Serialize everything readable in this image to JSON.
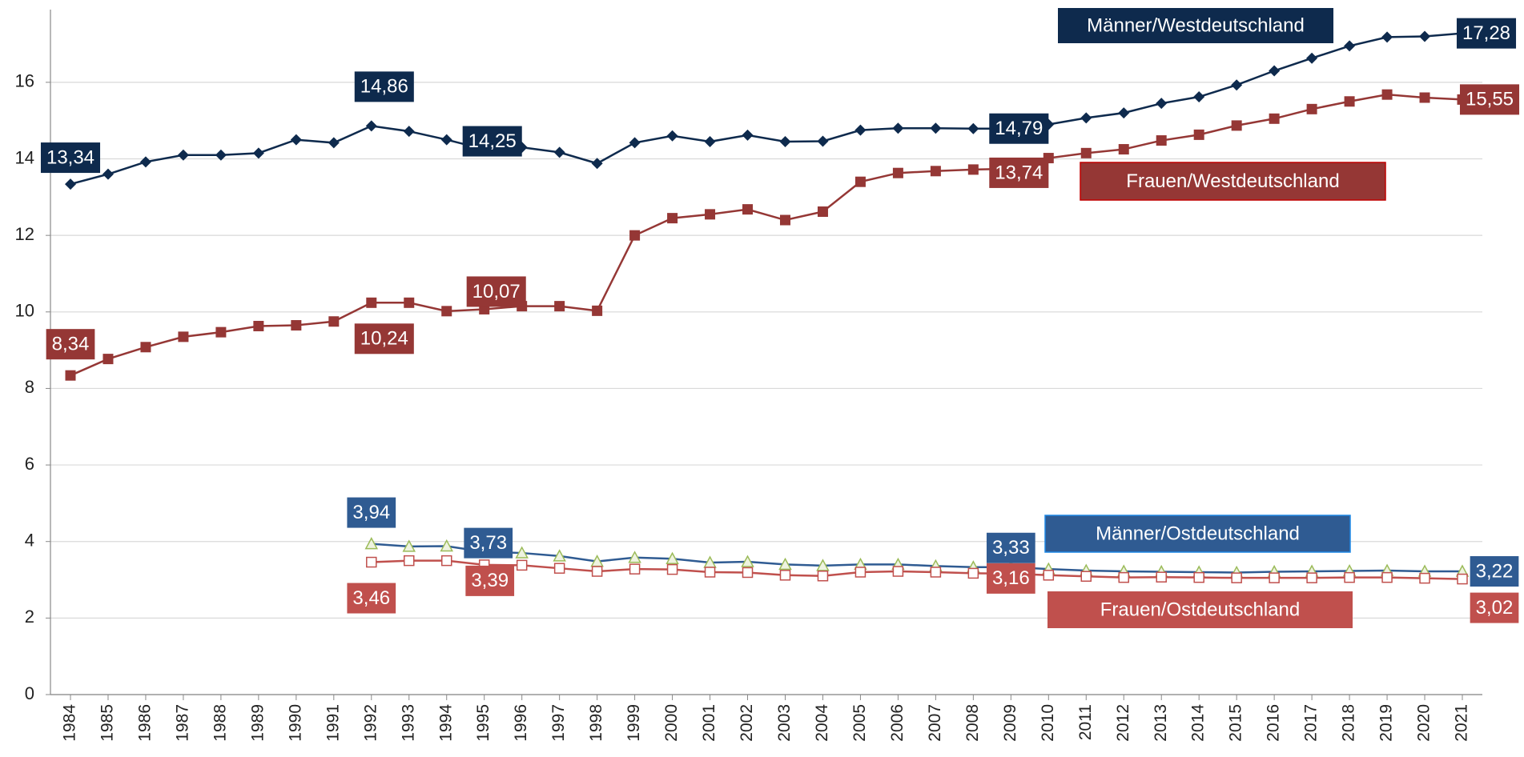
{
  "chart_data": {
    "type": "line",
    "categories": [
      "1984",
      "1985",
      "1986",
      "1987",
      "1988",
      "1989",
      "1990",
      "1991",
      "1992",
      "1993",
      "1994",
      "1995",
      "1996",
      "1997",
      "1998",
      "1999",
      "2000",
      "2001",
      "2002",
      "2003",
      "2004",
      "2005",
      "2006",
      "2007",
      "2008",
      "2009",
      "2010",
      "2011",
      "2012",
      "2013",
      "2014",
      "2015",
      "2016",
      "2017",
      "2018",
      "2019",
      "2020",
      "2021"
    ],
    "ylim": [
      0,
      17.9
    ],
    "yticks": [
      0,
      2,
      4,
      6,
      8,
      10,
      12,
      14,
      16
    ],
    "grid": true,
    "series": [
      {
        "name": "Männer/Westdeutschland",
        "color": "#0e2a4d",
        "marker": "diamond",
        "marker_color": "#0e2a4d",
        "values": [
          13.34,
          13.6,
          13.92,
          14.1,
          14.1,
          14.15,
          14.5,
          14.42,
          14.86,
          14.72,
          14.5,
          14.25,
          14.3,
          14.17,
          13.88,
          14.42,
          14.6,
          14.45,
          14.62,
          14.45,
          14.46,
          14.75,
          14.8,
          14.8,
          14.79,
          14.79,
          14.9,
          15.07,
          15.2,
          15.45,
          15.62,
          15.93,
          16.3,
          16.63,
          16.95,
          17.18,
          17.2,
          17.28
        ],
        "value_labels": [
          "13,34",
          null,
          null,
          null,
          null,
          null,
          null,
          null,
          "14,86",
          null,
          null,
          "14,25",
          null,
          null,
          null,
          null,
          null,
          null,
          null,
          null,
          null,
          null,
          null,
          null,
          null,
          "14,79",
          null,
          null,
          null,
          null,
          null,
          null,
          null,
          null,
          null,
          null,
          null,
          "17,28"
        ]
      },
      {
        "name": "Frauen/Westdeutschland",
        "color": "#953735",
        "marker": "square",
        "marker_color": "#953735",
        "values": [
          8.34,
          8.77,
          9.08,
          9.35,
          9.47,
          9.63,
          9.65,
          9.75,
          10.24,
          10.24,
          10.02,
          10.07,
          10.15,
          10.15,
          10.03,
          12.0,
          12.45,
          12.55,
          12.68,
          12.4,
          12.62,
          13.4,
          13.63,
          13.68,
          13.72,
          13.74,
          14.02,
          14.15,
          14.25,
          14.48,
          14.63,
          14.87,
          15.05,
          15.3,
          15.5,
          15.68,
          15.6,
          15.55
        ],
        "value_labels": [
          "8,34",
          null,
          null,
          null,
          null,
          null,
          null,
          null,
          "10,24",
          null,
          null,
          "10,07",
          null,
          null,
          null,
          null,
          null,
          null,
          null,
          null,
          null,
          null,
          null,
          null,
          null,
          "13,74",
          null,
          null,
          null,
          null,
          null,
          null,
          null,
          null,
          null,
          null,
          null,
          "15,55"
        ]
      },
      {
        "name": "Männer/Ostdeutschland",
        "color": "#2f5b92",
        "marker": "triangle",
        "marker_color": "#9bbb59",
        "values": [
          null,
          null,
          null,
          null,
          null,
          null,
          null,
          null,
          3.94,
          3.87,
          3.88,
          3.73,
          3.7,
          3.62,
          3.48,
          3.58,
          3.55,
          3.45,
          3.47,
          3.4,
          3.37,
          3.4,
          3.4,
          3.36,
          3.33,
          3.33,
          3.28,
          3.24,
          3.22,
          3.21,
          3.2,
          3.19,
          3.21,
          3.22,
          3.23,
          3.24,
          3.22,
          3.22
        ],
        "value_labels": [
          null,
          null,
          null,
          null,
          null,
          null,
          null,
          null,
          "3,94",
          null,
          null,
          "3,73",
          null,
          null,
          null,
          null,
          null,
          null,
          null,
          null,
          null,
          null,
          null,
          null,
          null,
          "3,33",
          null,
          null,
          null,
          null,
          null,
          null,
          null,
          null,
          null,
          null,
          null,
          "3,22"
        ]
      },
      {
        "name": "Frauen/Ostdeutschland",
        "color": "#c0504d",
        "marker": "open-square",
        "marker_color": "#c0504d",
        "values": [
          null,
          null,
          null,
          null,
          null,
          null,
          null,
          null,
          3.46,
          3.5,
          3.5,
          3.39,
          3.38,
          3.3,
          3.22,
          3.28,
          3.27,
          3.2,
          3.19,
          3.12,
          3.1,
          3.2,
          3.22,
          3.2,
          3.17,
          3.16,
          3.12,
          3.09,
          3.06,
          3.07,
          3.06,
          3.05,
          3.05,
          3.05,
          3.06,
          3.06,
          3.04,
          3.02
        ],
        "value_labels": [
          null,
          null,
          null,
          null,
          null,
          null,
          null,
          null,
          "3,46",
          null,
          null,
          "3,39",
          null,
          null,
          null,
          null,
          null,
          null,
          null,
          null,
          null,
          null,
          null,
          null,
          null,
          "3,16",
          null,
          null,
          null,
          null,
          null,
          null,
          null,
          null,
          null,
          null,
          null,
          "3,02"
        ]
      }
    ]
  }
}
